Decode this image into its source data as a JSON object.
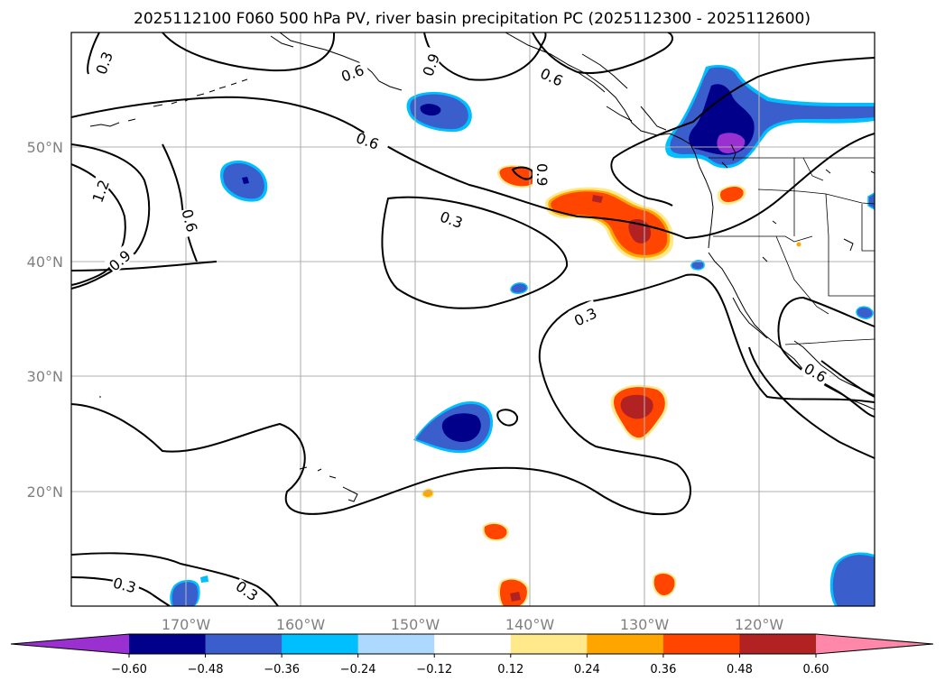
{
  "title": "2025112100 F060 500 hPa PV, river basin precipitation PC (2025112300 - 2025112600)",
  "map": {
    "lon_min": -180,
    "lon_max": -110,
    "lat_min": 10,
    "lat_max": 60,
    "lon_ticks": [
      {
        "lon": -170,
        "label": "170°W"
      },
      {
        "lon": -160,
        "label": "160°W"
      },
      {
        "lon": -150,
        "label": "150°W"
      },
      {
        "lon": -140,
        "label": "140°W"
      },
      {
        "lon": -130,
        "label": "130°W"
      },
      {
        "lon": -120,
        "label": "120°W"
      }
    ],
    "lat_ticks": [
      {
        "lat": 50,
        "label": "50°N"
      },
      {
        "lat": 40,
        "label": "40°N"
      },
      {
        "lat": 30,
        "label": "30°N"
      },
      {
        "lat": 20,
        "label": "20°N"
      }
    ],
    "grid": true
  },
  "colorbar": {
    "boundaries": [
      -0.6,
      -0.48,
      -0.36,
      -0.24,
      -0.12,
      0.12,
      0.24,
      0.36,
      0.48,
      0.6
    ],
    "labels": [
      "−0.60",
      "−0.48",
      "−0.36",
      "−0.24",
      "−0.12",
      "0.12",
      "0.24",
      "0.36",
      "0.48",
      "0.60"
    ],
    "colors": [
      "#9b30d0",
      "#00008b",
      "#3a5fcd",
      "#00bfff",
      "#add8ff",
      "#ffffff",
      "#ffe98a",
      "#ffa500",
      "#ff4500",
      "#b22222",
      "#ff88aa"
    ],
    "extend": "both"
  },
  "pv_contour_labels": [
    "0.3",
    "0.6",
    "0.9",
    "1.2"
  ],
  "precip_blobs": [
    {
      "name": "pc-blob-gulf-alaska",
      "lon": -148.5,
      "lat": 53.4,
      "value": -0.45
    },
    {
      "name": "pc-blob-west-pacific",
      "lon": -165.5,
      "lat": 47.2,
      "value": -0.45
    },
    {
      "name": "pc-blob-pacific-nw",
      "lon": -123.0,
      "lat": 51.0,
      "value": -0.62
    },
    {
      "name": "pc-blob-offshore-oregon",
      "lon": -132.0,
      "lat": 43.5,
      "value": 0.45
    },
    {
      "name": "pc-blob-small-north",
      "lon": -140.5,
      "lat": 47.9,
      "value": 0.4
    },
    {
      "name": "pc-blob-northern-california",
      "lon": -121.0,
      "lat": 46.0,
      "value": 0.4
    },
    {
      "name": "pc-blob-central",
      "lon": -146.0,
      "lat": 25.5,
      "value": -0.5
    },
    {
      "name": "pc-blob-subtropical",
      "lon": -130.5,
      "lat": 27.5,
      "value": 0.5
    },
    {
      "name": "pc-blob-south-central",
      "lon": -142.2,
      "lat": 16.3,
      "value": 0.4
    },
    {
      "name": "pc-blob-south",
      "lon": -141.0,
      "lat": 11.5,
      "value": 0.45
    },
    {
      "name": "pc-blob-southeast",
      "lon": -128.0,
      "lat": 12.0,
      "value": 0.4
    },
    {
      "name": "pc-blob-far-southeast",
      "lon": -112.5,
      "lat": 12.5,
      "value": -0.4
    },
    {
      "name": "pc-blob-far-southwest",
      "lon": -170.0,
      "lat": 11.0,
      "value": -0.4
    },
    {
      "name": "pc-blob-tiny-center",
      "lon": -140.5,
      "lat": 37.8,
      "value": -0.3
    },
    {
      "name": "pc-blob-tiny-east",
      "lon": -124.5,
      "lat": 39.8,
      "value": -0.3
    },
    {
      "name": "pc-blob-tiny-baja",
      "lon": -111.0,
      "lat": 35.5,
      "value": -0.3
    }
  ]
}
